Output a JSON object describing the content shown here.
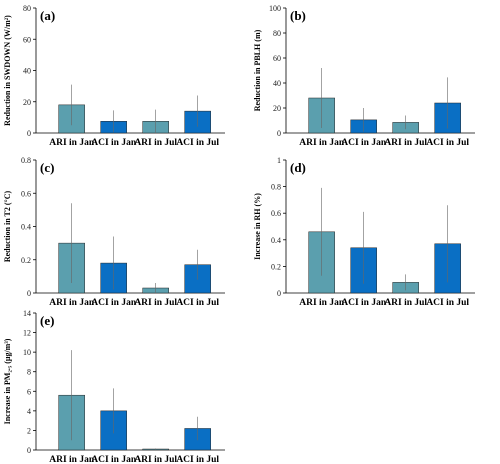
{
  "chart_data": [
    {
      "panel": "(a)",
      "type": "bar",
      "categories": [
        "ARI in Jan",
        "ACI in Jan",
        "ARI in Jul",
        "ACI in Jul"
      ],
      "values": [
        18,
        7.5,
        7.5,
        14
      ],
      "errors": [
        13,
        7,
        7.5,
        10
      ],
      "ylabel": "Reduction in SWDOWN (W/m²)",
      "ylim": [
        0,
        80
      ],
      "yticks": [
        0,
        20,
        40,
        60,
        80
      ],
      "colors": [
        "#5b9fae",
        "#0a6fc4",
        "#5b9fae",
        "#0a6fc4"
      ]
    },
    {
      "panel": "(b)",
      "type": "bar",
      "categories": [
        "ARI in Jan",
        "ACI in Jan",
        "ARI in Jul",
        "ACI in Jul"
      ],
      "values": [
        28,
        10.5,
        8.5,
        24
      ],
      "errors": [
        24,
        9.5,
        5.5,
        20.5
      ],
      "ylabel": "Reduction in PBLH (m)",
      "ylim": [
        0,
        100
      ],
      "yticks": [
        0,
        20,
        40,
        60,
        80,
        100
      ],
      "colors": [
        "#5b9fae",
        "#0a6fc4",
        "#5b9fae",
        "#0a6fc4"
      ]
    },
    {
      "panel": "(c)",
      "type": "bar",
      "categories": [
        "ARI in Jan",
        "ACI in Jan",
        "ARI in Jul",
        "ACI in Jul"
      ],
      "values": [
        0.3,
        0.18,
        0.03,
        0.17
      ],
      "errors": [
        0.24,
        0.16,
        0.03,
        0.09
      ],
      "ylabel": "Reduction in T2 (°C)",
      "ylim": [
        0,
        0.8
      ],
      "yticks": [
        0,
        0.2,
        0.4,
        0.6,
        0.8
      ],
      "colors": [
        "#5b9fae",
        "#0a6fc4",
        "#5b9fae",
        "#0a6fc4"
      ]
    },
    {
      "panel": "(d)",
      "type": "bar",
      "categories": [
        "ARI in Jan",
        "ACI in Jan",
        "ARI in Jul",
        "ACI in Jul"
      ],
      "values": [
        0.46,
        0.34,
        0.08,
        0.37
      ],
      "errors": [
        0.33,
        0.27,
        0.06,
        0.29
      ],
      "ylabel": "Increase in RH (%)",
      "ylim": [
        0,
        1
      ],
      "yticks": [
        0,
        0.2,
        0.4,
        0.6,
        0.8,
        1
      ],
      "colors": [
        "#5b9fae",
        "#0a6fc4",
        "#5b9fae",
        "#0a6fc4"
      ]
    },
    {
      "panel": "(e)",
      "type": "bar",
      "categories": [
        "ARI in Jan",
        "ACI in Jan",
        "ARI in Jul",
        "ACI in Jul"
      ],
      "values": [
        5.6,
        4.0,
        0.1,
        2.2
      ],
      "errors": [
        4.6,
        2.3,
        0.05,
        1.2
      ],
      "ylabel": "Increase in PM₂.₅ (μg/m³)",
      "ylim": [
        0,
        14
      ],
      "yticks": [
        0,
        2,
        4,
        6,
        8,
        10,
        12,
        14
      ],
      "colors": [
        "#5b9fae",
        "#0a6fc4",
        "#5b9fae",
        "#0a6fc4"
      ]
    }
  ]
}
